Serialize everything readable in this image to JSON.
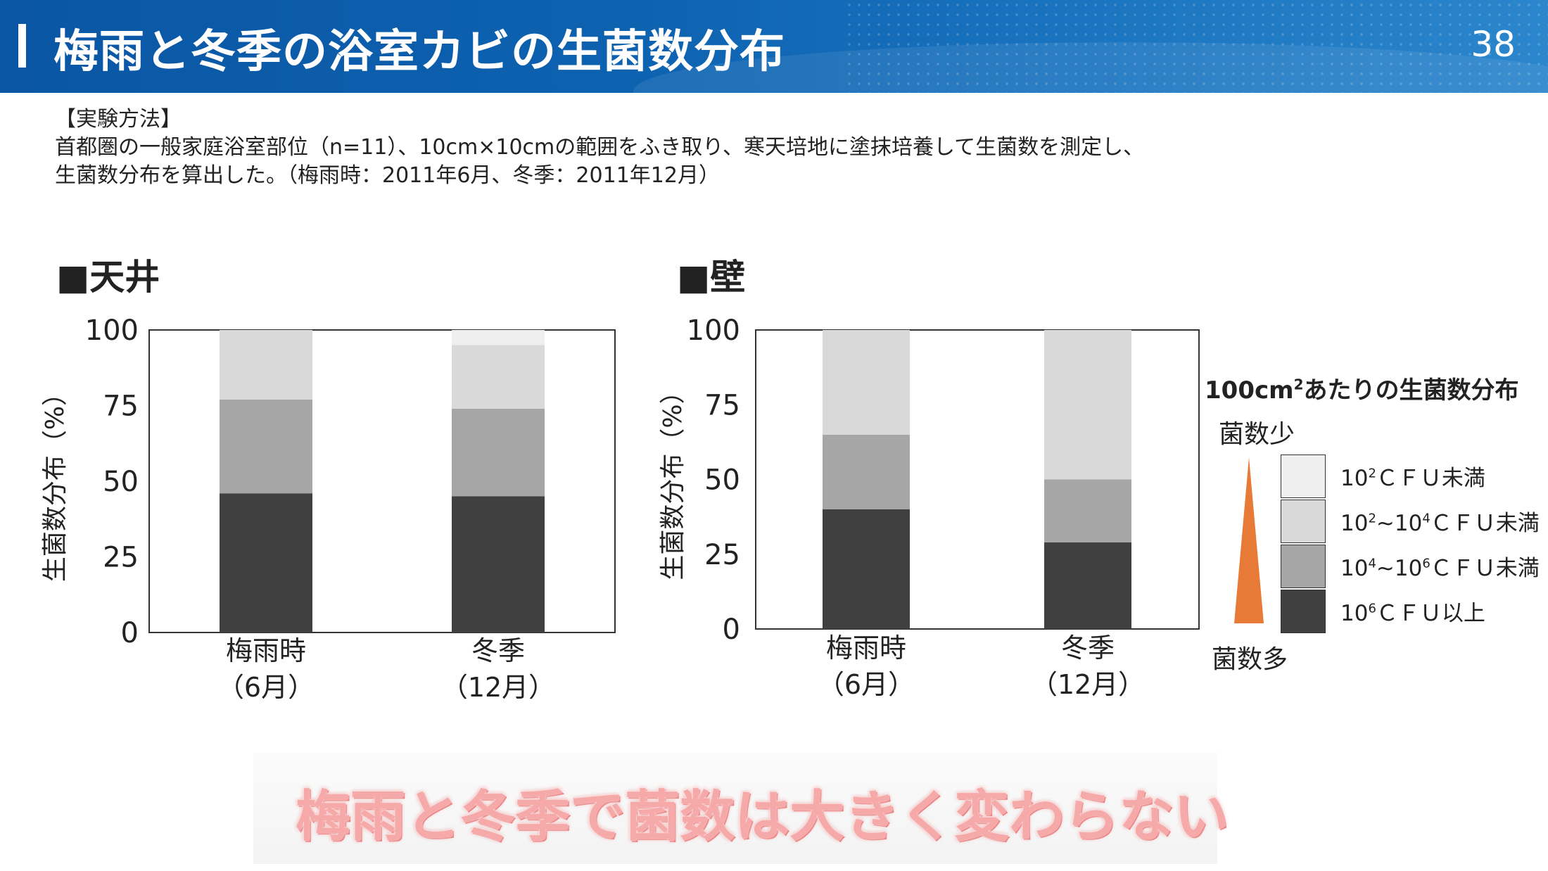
{
  "header": {
    "title": "梅雨と冬季の浴室カビの生菌数分布",
    "page_number": "38"
  },
  "method": {
    "heading": "【実験方法】",
    "line1": "首都圏の一般家庭浴室部位（n=11）、10cm×10cmの範囲をふき取り、寒天培地に塗抹培養して生菌数を測定し、",
    "line2": "生菌数分布を算出した。（梅雨時：2011年6月、冬季：2011年12月）"
  },
  "panels": {
    "left_title": "■天井",
    "right_title": "■壁"
  },
  "legend": {
    "title_prefix": "100cm",
    "title_sup": "2",
    "title_suffix": "あたりの生菌数分布",
    "few_label": "菌数少",
    "many_label": "菌数多",
    "items": [
      {
        "base1": "10",
        "sup1": "2",
        "mid": "",
        "base2": "",
        "sup2": "",
        "unit": "ＣＦＵ未満",
        "color": "#efefef"
      },
      {
        "base1": "10",
        "sup1": "2",
        "mid": "~",
        "base2": "10",
        "sup2": "4",
        "unit": "ＣＦＵ未満",
        "color": "#d9d9d9"
      },
      {
        "base1": "10",
        "sup1": "4",
        "mid": "~",
        "base2": "10",
        "sup2": "6",
        "unit": "ＣＦＵ未満",
        "color": "#a6a6a6"
      },
      {
        "base1": "10",
        "sup1": "6",
        "mid": "",
        "base2": "",
        "sup2": "",
        "unit": "ＣＦＵ以上",
        "color": "#404040"
      }
    ]
  },
  "conclusion": "梅雨と冬季で菌数は大きく変わらない",
  "chart_data": [
    {
      "type": "bar",
      "stacked": true,
      "title": "■天井",
      "ylabel": "生菌数分布（%）",
      "xlabel": "",
      "ylim": [
        0,
        100
      ],
      "yticks": [
        0,
        25,
        50,
        75,
        100
      ],
      "categories": [
        {
          "line1": "梅雨時",
          "line2": "（6月）"
        },
        {
          "line1": "冬季",
          "line2": "（12月）"
        }
      ],
      "series": [
        {
          "name": "10^6 CFU以上",
          "color": "#404040",
          "values": [
            46,
            45
          ]
        },
        {
          "name": "10^4~10^6 CFU未満",
          "color": "#a6a6a6",
          "values": [
            31,
            29
          ]
        },
        {
          "name": "10^2~10^4 CFU未満",
          "color": "#d9d9d9",
          "values": [
            23,
            21
          ]
        },
        {
          "name": "10^2 CFU未満",
          "color": "#efefef",
          "values": [
            0,
            5
          ]
        }
      ]
    },
    {
      "type": "bar",
      "stacked": true,
      "title": "■壁",
      "ylabel": "生菌数分布（%）",
      "xlabel": "",
      "ylim": [
        0,
        100
      ],
      "yticks": [
        0,
        25,
        50,
        75,
        100
      ],
      "categories": [
        {
          "line1": "梅雨時",
          "line2": "（6月）"
        },
        {
          "line1": "冬季",
          "line2": "（12月）"
        }
      ],
      "series": [
        {
          "name": "10^6 CFU以上",
          "color": "#404040",
          "values": [
            40,
            29
          ]
        },
        {
          "name": "10^4~10^6 CFU未満",
          "color": "#a6a6a6",
          "values": [
            25,
            21
          ]
        },
        {
          "name": "10^2~10^4 CFU未満",
          "color": "#d9d9d9",
          "values": [
            35,
            50
          ]
        },
        {
          "name": "10^2 CFU未満",
          "color": "#efefef",
          "values": [
            0,
            0
          ]
        }
      ]
    }
  ]
}
